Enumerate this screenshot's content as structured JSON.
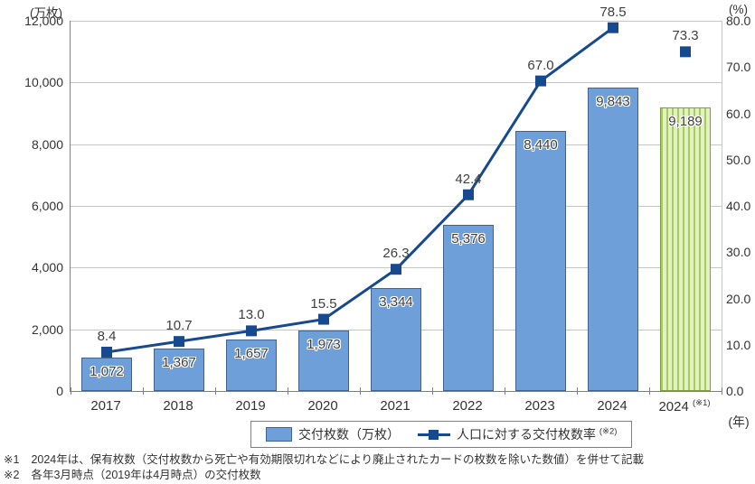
{
  "axes": {
    "left_unit": "(万枚)",
    "right_unit": "(%)",
    "year_unit": "(年)",
    "left_ticks": [
      "12,000",
      "10,000",
      "8,000",
      "6,000",
      "4,000",
      "2,000",
      "0"
    ],
    "right_ticks": [
      "80.0",
      "70.0",
      "60.0",
      "50.0",
      "40.0",
      "30.0",
      "20.0",
      "10.0",
      "0.0"
    ]
  },
  "chart_data": {
    "type": "bar+line combo",
    "title": "",
    "xlabel": "(年)",
    "ylabel_left": "(万枚)",
    "ylabel_right": "(%)",
    "ylim_left": [
      0,
      12000
    ],
    "ylim_right": [
      0,
      80
    ],
    "grid": "horizontal, every 2000 (left axis)",
    "legend_position": "bottom-center boxed",
    "categories": [
      {
        "label": "2017",
        "sup": "",
        "highlight": false
      },
      {
        "label": "2018",
        "sup": "",
        "highlight": false
      },
      {
        "label": "2019",
        "sup": "",
        "highlight": false
      },
      {
        "label": "2020",
        "sup": "",
        "highlight": false
      },
      {
        "label": "2021",
        "sup": "",
        "highlight": false
      },
      {
        "label": "2022",
        "sup": "",
        "highlight": false
      },
      {
        "label": "2023",
        "sup": "",
        "highlight": false
      },
      {
        "label": "2024",
        "sup": "",
        "highlight": false
      },
      {
        "label": "2024",
        "sup": "(※1)",
        "highlight": true
      }
    ],
    "series": [
      {
        "name": "交付枚数（万枚）",
        "type": "bar",
        "axis": "left",
        "values": [
          1072,
          1367,
          1657,
          1973,
          3344,
          5376,
          8440,
          9843,
          9189
        ],
        "labels": [
          "1,072",
          "1,367",
          "1,657",
          "1,973",
          "3,344",
          "5,376",
          "8,440",
          "9,843",
          "9,189"
        ]
      },
      {
        "name": "人口に対する交付枚数率（※2）",
        "type": "line",
        "axis": "right",
        "values": [
          8.4,
          10.7,
          13.0,
          15.5,
          26.3,
          42.4,
          67.0,
          78.5,
          73.3
        ],
        "labels": [
          "8.4",
          "10.7",
          "13.0",
          "15.5",
          "26.3",
          "42.4",
          "67.0",
          "78.5",
          "73.3"
        ],
        "connected": [
          true,
          true,
          true,
          true,
          true,
          true,
          true,
          true,
          false
        ]
      }
    ]
  },
  "legend": {
    "bar_label": "交付枚数（万枚）",
    "line_label": "人口に対する交付枚数率",
    "line_label_sup": "(※2)"
  },
  "footnotes": [
    {
      "marker": "※1",
      "text": "2024年は、保有枚数（交付枚数から死亡や有効期限切れなどにより廃止されたカードの枚数を除いた数値）を併せて記載"
    },
    {
      "marker": "※2",
      "text": "各年3月時点（2019年は4月時点）の交付枚数"
    }
  ],
  "colors": {
    "bar_fill": "#6f9fd8",
    "bar_border": "#3f648f",
    "line": "#17498f",
    "highlight_fill": "#e3f0c0",
    "highlight_stripe": "#a5cb63",
    "highlight_border": "#7f9f45",
    "grid": "#c6c6c6",
    "axis": "#7f7f7f"
  }
}
